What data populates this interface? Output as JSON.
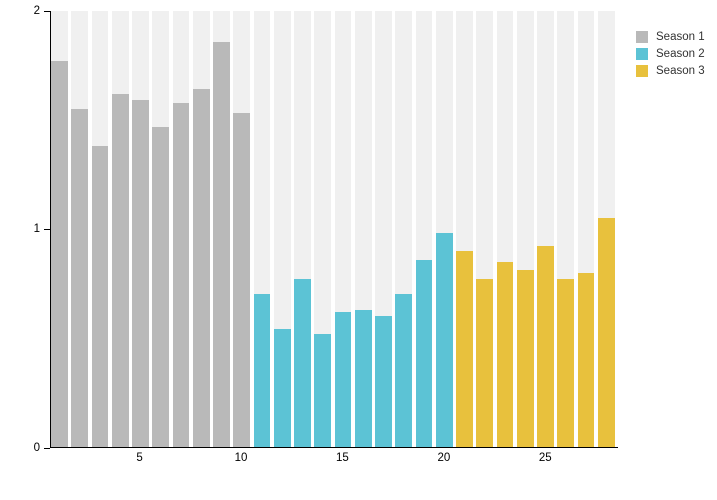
{
  "chart_data": {
    "type": "bar",
    "title": "",
    "xlabel": "",
    "ylabel": "",
    "ylim": [
      0,
      2
    ],
    "y_ticks": [
      0,
      1,
      2
    ],
    "x_ticks": [
      5,
      10,
      15,
      20,
      25
    ],
    "x_range": [
      1,
      28
    ],
    "grid": false,
    "background_stripes": true,
    "legend_position": "top-right",
    "colors": {
      "background": "#ffffff",
      "stripe": "#f0f0f0",
      "axis": "#000000"
    },
    "series": [
      {
        "name": "Season 1",
        "color": "#b9b9b9",
        "episodes": [
          1,
          2,
          3,
          4,
          5,
          6,
          7,
          8,
          9,
          10
        ],
        "values": [
          1.77,
          1.55,
          1.38,
          1.62,
          1.59,
          1.47,
          1.58,
          1.64,
          1.86,
          1.53
        ]
      },
      {
        "name": "Season 2",
        "color": "#5cc3d5",
        "episodes": [
          11,
          12,
          13,
          14,
          15,
          16,
          17,
          18,
          19,
          20
        ],
        "values": [
          0.7,
          0.54,
          0.77,
          0.52,
          0.62,
          0.63,
          0.6,
          0.7,
          0.86,
          0.98
        ]
      },
      {
        "name": "Season 3",
        "color": "#e8c13d",
        "episodes": [
          21,
          22,
          23,
          24,
          25,
          26,
          27,
          28
        ],
        "values": [
          0.9,
          0.77,
          0.85,
          0.81,
          0.92,
          0.77,
          0.8,
          1.05
        ]
      }
    ]
  }
}
